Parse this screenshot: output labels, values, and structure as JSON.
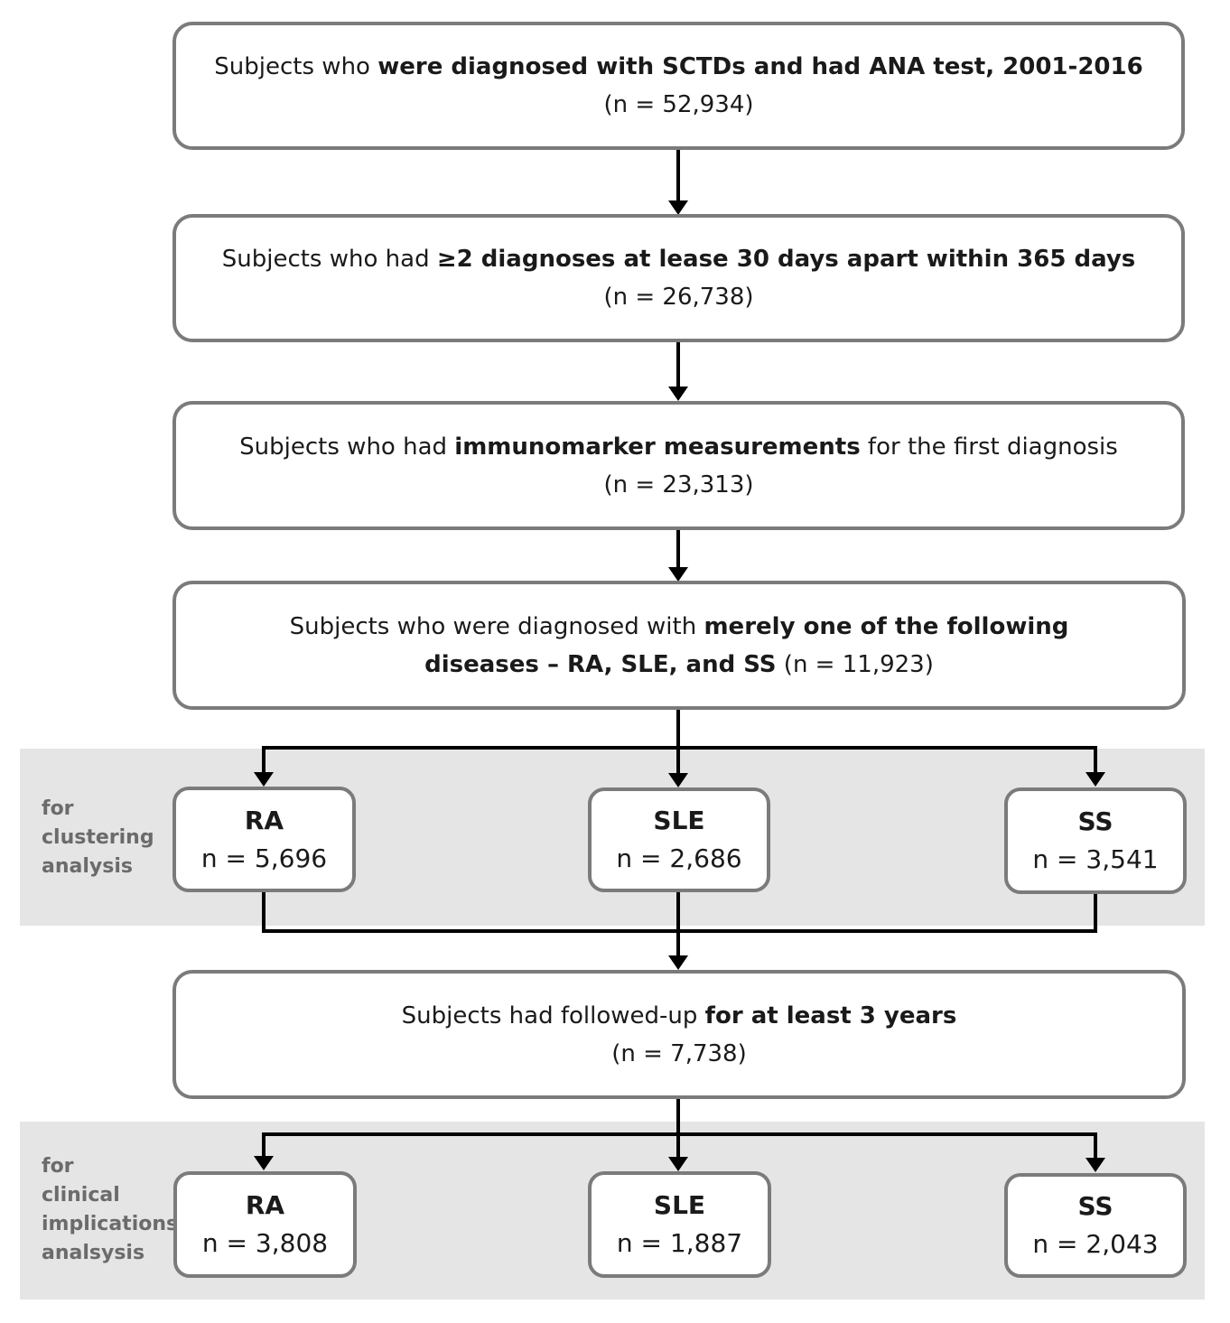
{
  "steps": [
    {
      "pre": "Subjects who ",
      "bold": "were diagnosed with SCTDs and had ANA test, 2001-2016",
      "post": "",
      "n": "(n = 52,934)"
    },
    {
      "pre": "Subjects who had ",
      "bold": "≥2 diagnoses at lease 30 days apart within 365 days",
      "post": "",
      "n": "(n = 26,738)"
    },
    {
      "pre": "Subjects who had ",
      "bold": "immunomarker measurements",
      "post": " for the first diagnosis",
      "n": "(n = 23,313)"
    },
    {
      "line1_pre": "Subjects who were diagnosed with ",
      "line1_bold": "merely one of the following",
      "line2_bold": "diseases – RA, SLE, and SS",
      "line2_post": " (n = 11,923)"
    },
    {
      "pre": "Subjects had followed-up ",
      "bold": "for at least 3 years",
      "post": "",
      "n": "(n = 7,738)"
    }
  ],
  "clustering": {
    "label": "for\nclustering\nanalysis",
    "groups": [
      {
        "name": "RA",
        "n": "n = 5,696"
      },
      {
        "name": "SLE",
        "n": "n = 2,686"
      },
      {
        "name": "SS",
        "n": "n = 3,541"
      }
    ]
  },
  "clinical": {
    "label": "for\nclinical\nimplications\nanalsysis",
    "groups": [
      {
        "name": "RA",
        "n": "n = 3,808"
      },
      {
        "name": "SLE",
        "n": "n = 1,887"
      },
      {
        "name": "SS",
        "n": "n = 2,043"
      }
    ]
  },
  "colors": {
    "band": "#e5e5e5",
    "border": "#7b7b7b",
    "arrow": "#000000",
    "label": "#6b6b6b"
  }
}
